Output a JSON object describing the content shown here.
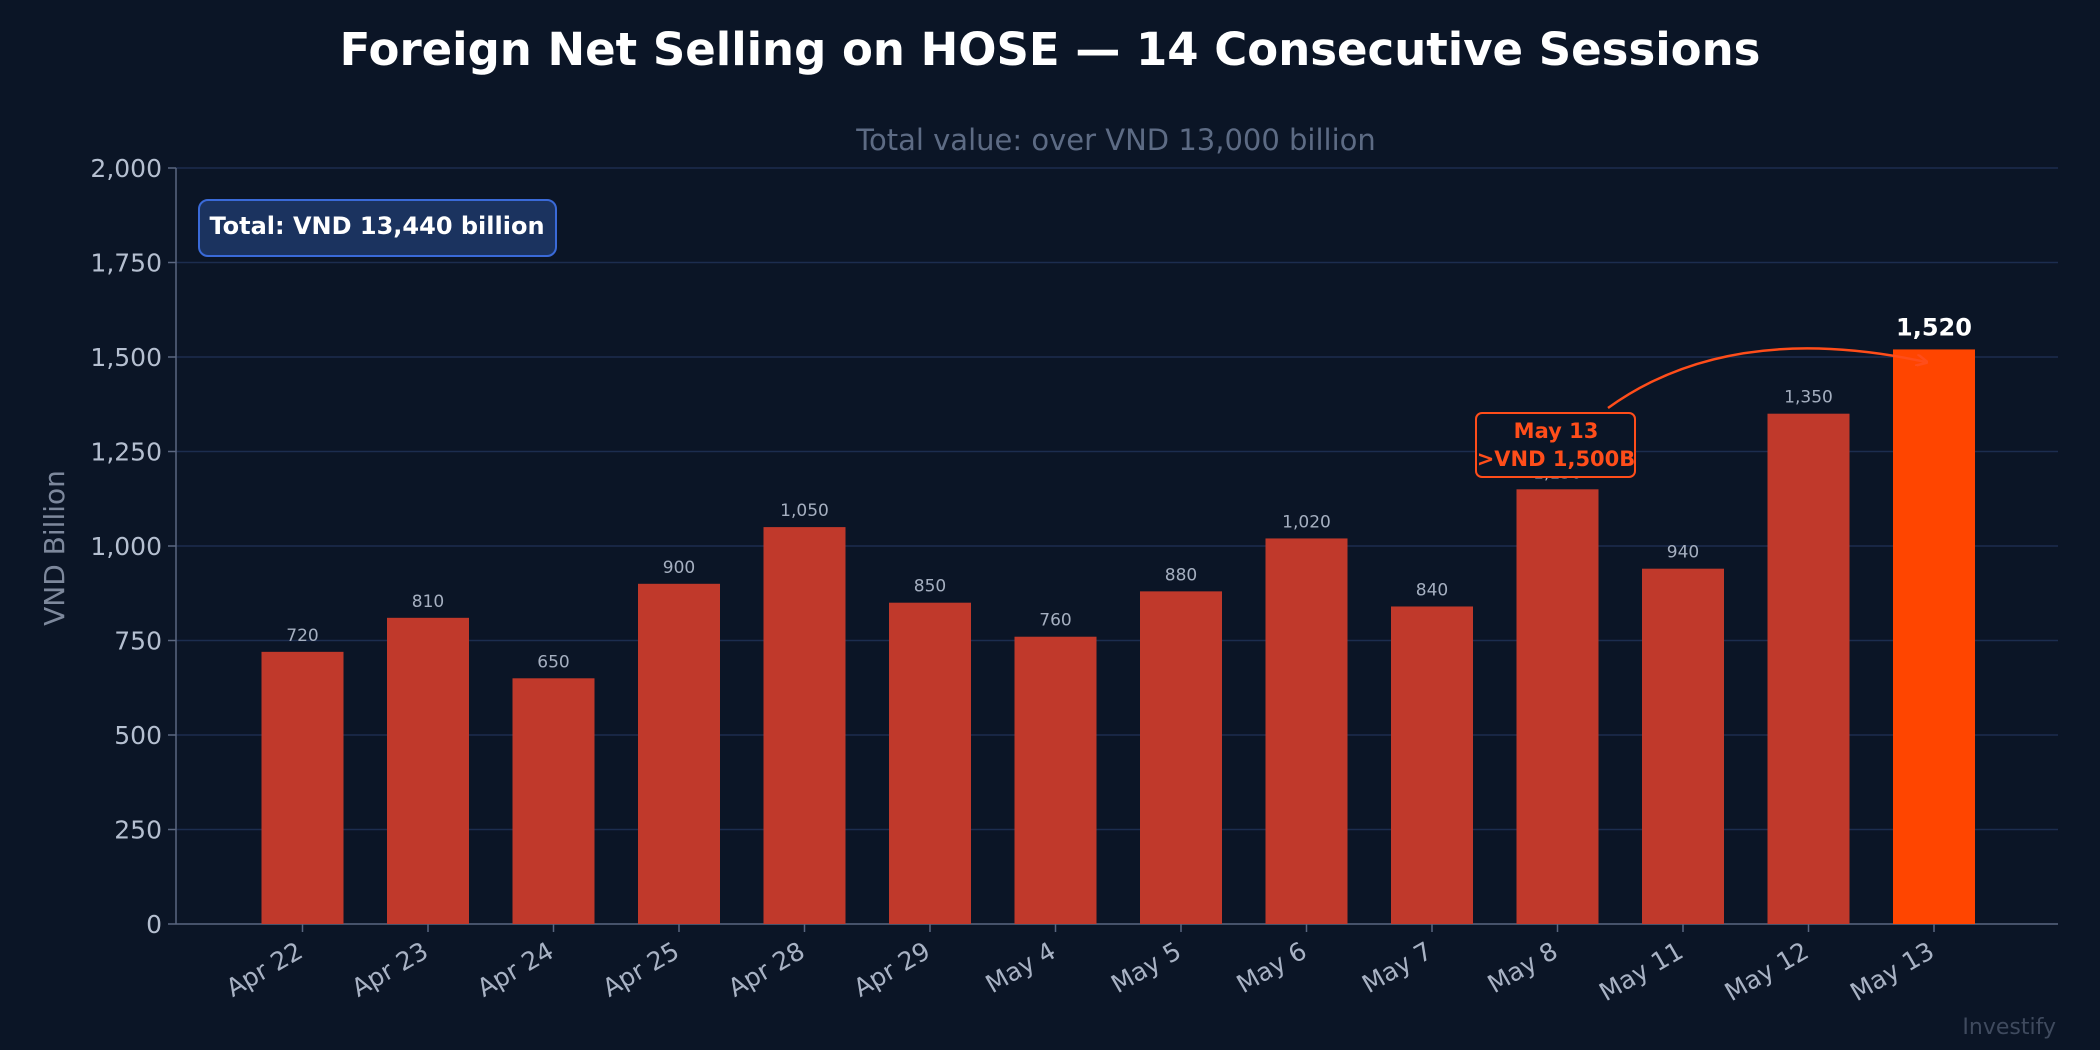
{
  "chart_data": {
    "type": "bar",
    "title": "Foreign Net Selling on HOSE — 14 Consecutive Sessions",
    "subtitle": "Total value: over VND 13,000 billion",
    "ylabel": "VND Billion",
    "xlabel": "",
    "categories": [
      "Apr 22",
      "Apr 23",
      "Apr 24",
      "Apr 25",
      "Apr 28",
      "Apr 29",
      "May 4",
      "May 5",
      "May 6",
      "May 7",
      "May 8",
      "May 11",
      "May 12",
      "May 13"
    ],
    "values": [
      720,
      810,
      650,
      900,
      1050,
      850,
      760,
      880,
      1020,
      840,
      1150,
      940,
      1350,
      1520
    ],
    "value_labels": [
      "720",
      "810",
      "650",
      "900",
      "1,050",
      "850",
      "760",
      "880",
      "1,020",
      "840",
      "1,150",
      "940",
      "1,350",
      "1,520"
    ],
    "ylim": [
      0,
      2000
    ],
    "yticks": [
      0,
      250,
      500,
      750,
      1000,
      1250,
      1500,
      1750,
      2000
    ],
    "ytick_labels": [
      "0",
      "250",
      "500",
      "750",
      "1,000",
      "1,250",
      "1,500",
      "1,750",
      "2,000"
    ],
    "grid": "horizontal",
    "highlight_index": 13,
    "total_box": "Total: VND 13,440 billion",
    "annotation": {
      "line1": "May 13",
      "line2": ">VND 1,500B",
      "target_category": "May 13"
    },
    "colors": {
      "background": "#0b1526",
      "bar": "#c0392b",
      "bar_highlight": "#ff4500",
      "grid": "#1c2d4f",
      "annotation": "#ff4d1a",
      "total_box_fill": "#1b335f",
      "total_box_border": "#3a6ad8"
    }
  },
  "watermark": "Investify"
}
